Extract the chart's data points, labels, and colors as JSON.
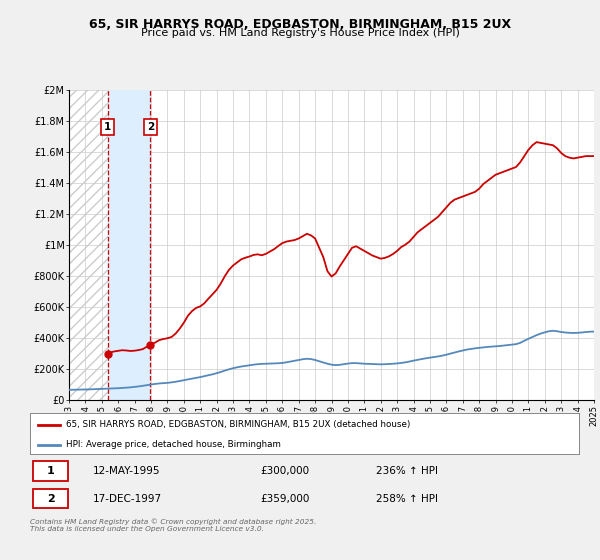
{
  "title1": "65, SIR HARRYS ROAD, EDGBASTON, BIRMINGHAM, B15 2UX",
  "title2": "Price paid vs. HM Land Registry's House Price Index (HPI)",
  "bg_color": "#f0f0f0",
  "plot_bg_color": "#ffffff",
  "grid_color": "#cccccc",
  "red_line_color": "#cc0000",
  "blue_line_color": "#5588bb",
  "shade_color": "#ddeeff",
  "sale1_price": 300000,
  "sale1_label": "12-MAY-1995",
  "sale1_hpi": "236% ↑ HPI",
  "sale2_price": 359000,
  "sale2_label": "17-DEC-1997",
  "sale2_hpi": "258% ↑ HPI",
  "sale1_x": 1995.36,
  "sale2_x": 1997.96,
  "ylabel_ticks": [
    "£0",
    "£200K",
    "£400K",
    "£600K",
    "£800K",
    "£1M",
    "£1.2M",
    "£1.4M",
    "£1.6M",
    "£1.8M",
    "£2M"
  ],
  "ylabel_vals": [
    0,
    200000,
    400000,
    600000,
    800000,
    1000000,
    1200000,
    1400000,
    1600000,
    1800000,
    2000000
  ],
  "legend_label_red": "65, SIR HARRYS ROAD, EDGBASTON, BIRMINGHAM, B15 2UX (detached house)",
  "legend_label_blue": "HPI: Average price, detached house, Birmingham",
  "footer": "Contains HM Land Registry data © Crown copyright and database right 2025.\nThis data is licensed under the Open Government Licence v3.0.",
  "hpi_data": [
    [
      1993.0,
      68000
    ],
    [
      1993.25,
      68500
    ],
    [
      1993.5,
      69000
    ],
    [
      1993.75,
      69500
    ],
    [
      1994.0,
      70000
    ],
    [
      1994.25,
      71000
    ],
    [
      1994.5,
      72000
    ],
    [
      1994.75,
      73000
    ],
    [
      1995.0,
      74000
    ],
    [
      1995.25,
      75000
    ],
    [
      1995.5,
      76000
    ],
    [
      1995.75,
      77000
    ],
    [
      1996.0,
      78500
    ],
    [
      1996.25,
      80000
    ],
    [
      1996.5,
      82000
    ],
    [
      1996.75,
      84000
    ],
    [
      1997.0,
      87000
    ],
    [
      1997.25,
      90000
    ],
    [
      1997.5,
      94000
    ],
    [
      1997.75,
      98000
    ],
    [
      1998.0,
      102000
    ],
    [
      1998.25,
      106000
    ],
    [
      1998.5,
      109000
    ],
    [
      1998.75,
      111000
    ],
    [
      1999.0,
      113000
    ],
    [
      1999.25,
      116000
    ],
    [
      1999.5,
      120000
    ],
    [
      1999.75,
      125000
    ],
    [
      2000.0,
      130000
    ],
    [
      2000.25,
      135000
    ],
    [
      2000.5,
      140000
    ],
    [
      2000.75,
      145000
    ],
    [
      2001.0,
      150000
    ],
    [
      2001.25,
      156000
    ],
    [
      2001.5,
      162000
    ],
    [
      2001.75,
      168000
    ],
    [
      2002.0,
      175000
    ],
    [
      2002.25,
      183000
    ],
    [
      2002.5,
      192000
    ],
    [
      2002.75,
      200000
    ],
    [
      2003.0,
      207000
    ],
    [
      2003.25,
      213000
    ],
    [
      2003.5,
      218000
    ],
    [
      2003.75,
      222000
    ],
    [
      2004.0,
      226000
    ],
    [
      2004.25,
      230000
    ],
    [
      2004.5,
      233000
    ],
    [
      2004.75,
      235000
    ],
    [
      2005.0,
      236000
    ],
    [
      2005.25,
      237000
    ],
    [
      2005.5,
      238000
    ],
    [
      2005.75,
      239000
    ],
    [
      2006.0,
      241000
    ],
    [
      2006.25,
      245000
    ],
    [
      2006.5,
      250000
    ],
    [
      2006.75,
      255000
    ],
    [
      2007.0,
      260000
    ],
    [
      2007.25,
      265000
    ],
    [
      2007.5,
      268000
    ],
    [
      2007.75,
      266000
    ],
    [
      2008.0,
      260000
    ],
    [
      2008.25,
      252000
    ],
    [
      2008.5,
      244000
    ],
    [
      2008.75,
      236000
    ],
    [
      2009.0,
      230000
    ],
    [
      2009.25,
      227000
    ],
    [
      2009.5,
      229000
    ],
    [
      2009.75,
      233000
    ],
    [
      2010.0,
      237000
    ],
    [
      2010.25,
      240000
    ],
    [
      2010.5,
      240000
    ],
    [
      2010.75,
      238000
    ],
    [
      2011.0,
      236000
    ],
    [
      2011.25,
      235000
    ],
    [
      2011.5,
      234000
    ],
    [
      2011.75,
      233000
    ],
    [
      2012.0,
      232000
    ],
    [
      2012.25,
      233000
    ],
    [
      2012.5,
      234000
    ],
    [
      2012.75,
      236000
    ],
    [
      2013.0,
      238000
    ],
    [
      2013.25,
      241000
    ],
    [
      2013.5,
      245000
    ],
    [
      2013.75,
      250000
    ],
    [
      2014.0,
      256000
    ],
    [
      2014.25,
      261000
    ],
    [
      2014.5,
      266000
    ],
    [
      2014.75,
      271000
    ],
    [
      2015.0,
      275000
    ],
    [
      2015.25,
      279000
    ],
    [
      2015.5,
      283000
    ],
    [
      2015.75,
      288000
    ],
    [
      2016.0,
      294000
    ],
    [
      2016.25,
      301000
    ],
    [
      2016.5,
      308000
    ],
    [
      2016.75,
      315000
    ],
    [
      2017.0,
      321000
    ],
    [
      2017.25,
      327000
    ],
    [
      2017.5,
      331000
    ],
    [
      2017.75,
      335000
    ],
    [
      2018.0,
      338000
    ],
    [
      2018.25,
      341000
    ],
    [
      2018.5,
      344000
    ],
    [
      2018.75,
      346000
    ],
    [
      2019.0,
      348000
    ],
    [
      2019.25,
      350000
    ],
    [
      2019.5,
      353000
    ],
    [
      2019.75,
      356000
    ],
    [
      2020.0,
      359000
    ],
    [
      2020.25,
      362000
    ],
    [
      2020.5,
      370000
    ],
    [
      2020.75,
      384000
    ],
    [
      2021.0,
      396000
    ],
    [
      2021.25,
      408000
    ],
    [
      2021.5,
      420000
    ],
    [
      2021.75,
      430000
    ],
    [
      2022.0,
      438000
    ],
    [
      2022.25,
      445000
    ],
    [
      2022.5,
      448000
    ],
    [
      2022.75,
      445000
    ],
    [
      2023.0,
      440000
    ],
    [
      2023.25,
      437000
    ],
    [
      2023.5,
      435000
    ],
    [
      2023.75,
      434000
    ],
    [
      2024.0,
      435000
    ],
    [
      2024.25,
      437000
    ],
    [
      2024.5,
      440000
    ],
    [
      2024.75,
      442000
    ],
    [
      2025.0,
      443000
    ]
  ],
  "property_data": [
    [
      1995.36,
      300000
    ],
    [
      1995.5,
      308000
    ],
    [
      1995.75,
      315000
    ],
    [
      1996.0,
      319000
    ],
    [
      1996.25,
      323000
    ],
    [
      1996.5,
      321000
    ],
    [
      1996.75,
      318000
    ],
    [
      1997.0,
      320000
    ],
    [
      1997.25,
      324000
    ],
    [
      1997.5,
      330000
    ],
    [
      1997.96,
      359000
    ],
    [
      1998.25,
      372000
    ],
    [
      1998.5,
      388000
    ],
    [
      1998.75,
      395000
    ],
    [
      1999.0,
      400000
    ],
    [
      1999.25,
      408000
    ],
    [
      1999.5,
      430000
    ],
    [
      1999.75,
      462000
    ],
    [
      2000.0,
      500000
    ],
    [
      2000.25,
      545000
    ],
    [
      2000.5,
      575000
    ],
    [
      2000.75,
      595000
    ],
    [
      2001.0,
      605000
    ],
    [
      2001.25,
      625000
    ],
    [
      2001.5,
      655000
    ],
    [
      2001.75,
      683000
    ],
    [
      2002.0,
      712000
    ],
    [
      2002.25,
      752000
    ],
    [
      2002.5,
      800000
    ],
    [
      2002.75,
      840000
    ],
    [
      2003.0,
      868000
    ],
    [
      2003.25,
      888000
    ],
    [
      2003.5,
      908000
    ],
    [
      2003.75,
      918000
    ],
    [
      2004.0,
      926000
    ],
    [
      2004.25,
      936000
    ],
    [
      2004.5,
      940000
    ],
    [
      2004.75,
      934000
    ],
    [
      2005.0,
      943000
    ],
    [
      2005.25,
      958000
    ],
    [
      2005.5,
      973000
    ],
    [
      2005.75,
      993000
    ],
    [
      2006.0,
      1012000
    ],
    [
      2006.25,
      1022000
    ],
    [
      2006.5,
      1027000
    ],
    [
      2006.75,
      1032000
    ],
    [
      2007.0,
      1042000
    ],
    [
      2007.25,
      1057000
    ],
    [
      2007.5,
      1072000
    ],
    [
      2007.75,
      1062000
    ],
    [
      2008.0,
      1042000
    ],
    [
      2008.25,
      982000
    ],
    [
      2008.5,
      922000
    ],
    [
      2008.75,
      832000
    ],
    [
      2009.0,
      797000
    ],
    [
      2009.25,
      817000
    ],
    [
      2009.5,
      862000
    ],
    [
      2009.75,
      902000
    ],
    [
      2010.0,
      942000
    ],
    [
      2010.25,
      982000
    ],
    [
      2010.5,
      992000
    ],
    [
      2010.75,
      977000
    ],
    [
      2011.0,
      962000
    ],
    [
      2011.25,
      947000
    ],
    [
      2011.5,
      932000
    ],
    [
      2011.75,
      922000
    ],
    [
      2012.0,
      912000
    ],
    [
      2012.25,
      917000
    ],
    [
      2012.5,
      927000
    ],
    [
      2012.75,
      942000
    ],
    [
      2013.0,
      962000
    ],
    [
      2013.25,
      987000
    ],
    [
      2013.5,
      1002000
    ],
    [
      2013.75,
      1022000
    ],
    [
      2014.0,
      1052000
    ],
    [
      2014.25,
      1082000
    ],
    [
      2014.5,
      1102000
    ],
    [
      2014.75,
      1122000
    ],
    [
      2015.0,
      1142000
    ],
    [
      2015.25,
      1162000
    ],
    [
      2015.5,
      1182000
    ],
    [
      2015.75,
      1212000
    ],
    [
      2016.0,
      1242000
    ],
    [
      2016.25,
      1272000
    ],
    [
      2016.5,
      1292000
    ],
    [
      2016.75,
      1302000
    ],
    [
      2017.0,
      1312000
    ],
    [
      2017.25,
      1322000
    ],
    [
      2017.5,
      1332000
    ],
    [
      2017.75,
      1342000
    ],
    [
      2018.0,
      1362000
    ],
    [
      2018.25,
      1392000
    ],
    [
      2018.5,
      1412000
    ],
    [
      2018.75,
      1432000
    ],
    [
      2019.0,
      1452000
    ],
    [
      2019.25,
      1462000
    ],
    [
      2019.5,
      1472000
    ],
    [
      2019.75,
      1482000
    ],
    [
      2020.0,
      1492000
    ],
    [
      2020.25,
      1502000
    ],
    [
      2020.5,
      1532000
    ],
    [
      2020.75,
      1572000
    ],
    [
      2021.0,
      1612000
    ],
    [
      2021.25,
      1642000
    ],
    [
      2021.5,
      1662000
    ],
    [
      2021.75,
      1657000
    ],
    [
      2022.0,
      1652000
    ],
    [
      2022.25,
      1647000
    ],
    [
      2022.5,
      1642000
    ],
    [
      2022.75,
      1622000
    ],
    [
      2023.0,
      1592000
    ],
    [
      2023.25,
      1572000
    ],
    [
      2023.5,
      1562000
    ],
    [
      2023.75,
      1557000
    ],
    [
      2024.0,
      1562000
    ],
    [
      2024.25,
      1567000
    ],
    [
      2024.5,
      1572000
    ],
    [
      2024.75,
      1572000
    ],
    [
      2025.0,
      1572000
    ]
  ],
  "xmin": 1993,
  "xmax": 2025,
  "ymin": 0,
  "ymax": 2000000
}
